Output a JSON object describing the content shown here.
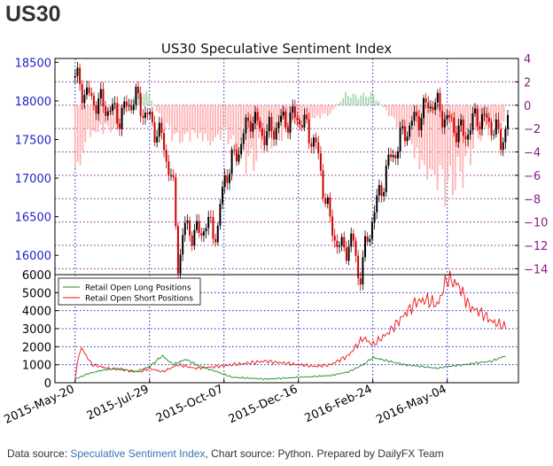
{
  "page": {
    "heading": "US30",
    "footer": {
      "prefix": "Data source: ",
      "link": "Speculative Sentiment Index",
      "suffix": ", Chart source: Python. Prepared by DailyFX Team"
    }
  },
  "colors": {
    "price_up": "#000000",
    "price_down": "#cc0000",
    "ssi_positive": "#a8d8b0",
    "ssi_negative": "#ffb3b3",
    "long_positions": "#1a8c1a",
    "short_positions": "#ee1111",
    "left_axis": "#1f1fcc",
    "right_axis": "#8b1a8b",
    "vertical_grid": "#1f1fcc",
    "horizontal_grid": "#8b1a8b"
  },
  "chart_data": [
    {
      "type": "line",
      "title": "US30 Speculative Sentiment Index",
      "subtype": "candlestick with sentiment bars",
      "x_ticks": [
        "2015-May-20",
        "2015-Jul-29",
        "2015-Oct-07",
        "2015-Dec-16",
        "2016-Feb-24",
        "2016-May-04"
      ],
      "xlim": [
        "2015-May-01",
        "2016-Jul-10"
      ],
      "left_axis": {
        "ticks": [
          16000,
          16500,
          17000,
          17500,
          18000,
          18500
        ],
        "ylim": [
          15750,
          18550
        ]
      },
      "right_axis": {
        "ticks": [
          4,
          2,
          0,
          -2,
          -4,
          -6,
          -8,
          -10,
          -12,
          -14
        ],
        "ylim": [
          -14.5,
          4
        ]
      },
      "grid": true,
      "series": [
        {
          "name": "",
          "kind": "price",
          "x": [
            "2015-May-20",
            "2015-Jun-01",
            "2015-Jun-15",
            "2015-Jul-01",
            "2015-Jul-15",
            "2015-Jul-29",
            "2015-Aug-10",
            "2015-Aug-20",
            "2015-Aug-25",
            "2015-Sep-01",
            "2015-Sep-10",
            "2015-Sep-20",
            "2015-Oct-01",
            "2015-Oct-07",
            "2015-Oct-20",
            "2015-Nov-01",
            "2015-Nov-15",
            "2015-Dec-01",
            "2015-Dec-16",
            "2016-Jan-01",
            "2016-Jan-15",
            "2016-Jan-25",
            "2016-Feb-05",
            "2016-Feb-11",
            "2016-Feb-24",
            "2016-Mar-10",
            "2016-Mar-25",
            "2016-Apr-10",
            "2016-Apr-20",
            "2016-May-04",
            "2016-May-20",
            "2016-Jun-01",
            "2016-Jun-15",
            "2016-Jun-24",
            "2016-Jul-01"
          ],
          "values": [
            18300,
            18050,
            17950,
            17800,
            18050,
            17750,
            17500,
            16900,
            15900,
            16400,
            16250,
            16400,
            16300,
            17000,
            17350,
            17800,
            17550,
            17750,
            17800,
            17450,
            16400,
            16050,
            16200,
            15700,
            16500,
            17200,
            17600,
            17850,
            18000,
            17750,
            17550,
            17800,
            17700,
            17450,
            17850
          ]
        },
        {
          "name": "",
          "kind": "ssi",
          "x": [
            "2015-May-20",
            "2015-Jun-01",
            "2015-Jun-15",
            "2015-Jul-01",
            "2015-Jul-15",
            "2015-Jul-29",
            "2015-Aug-10",
            "2015-Aug-25",
            "2015-Sep-10",
            "2015-Sep-25",
            "2015-Oct-07",
            "2015-Oct-20",
            "2015-Nov-01",
            "2015-Nov-15",
            "2015-Dec-01",
            "2015-Dec-16",
            "2016-Jan-01",
            "2016-Jan-15",
            "2016-Jan-29",
            "2016-Feb-10",
            "2016-Feb-24",
            "2016-Mar-10",
            "2016-Mar-25",
            "2016-Apr-10",
            "2016-Apr-25",
            "2016-May-04",
            "2016-May-20",
            "2016-Jun-01",
            "2016-Jun-15",
            "2016-Jun-28"
          ],
          "values": [
            -8.5,
            -3.5,
            -3.0,
            -2.5,
            1.5,
            1.2,
            -2.0,
            -4.0,
            -3.5,
            -4.5,
            -3.0,
            -5.0,
            -6.5,
            -4.0,
            -3.5,
            -2.0,
            -1.5,
            -1.0,
            1.2,
            1.0,
            1.2,
            -1.0,
            -3.5,
            -7.5,
            -8.5,
            -9.5,
            -7.0,
            -3.5,
            -2.5,
            -2.0
          ]
        }
      ]
    },
    {
      "type": "line",
      "x_ticks": [
        "2015-May-20",
        "2015-Jul-29",
        "2015-Oct-07",
        "2015-Dec-16",
        "2016-Feb-24",
        "2016-May-04"
      ],
      "y_ticks": [
        0,
        1000,
        2000,
        3000,
        4000,
        5000,
        6000
      ],
      "ylim": [
        0,
        6000
      ],
      "legend": "top-left",
      "grid": true,
      "series": [
        {
          "name": "Retail Open Long Positions",
          "x": [
            "2015-May-20",
            "2015-Jun-01",
            "2015-Jun-15",
            "2015-Jul-01",
            "2015-Jul-15",
            "2015-Jul-29",
            "2015-Aug-10",
            "2015-Aug-20",
            "2015-Sep-01",
            "2015-Sep-15",
            "2015-Oct-01",
            "2015-Oct-15",
            "2015-Nov-01",
            "2015-Nov-15",
            "2015-Dec-01",
            "2015-Dec-16",
            "2016-Jan-01",
            "2016-Jan-15",
            "2016-Feb-01",
            "2016-Feb-15",
            "2016-Feb-24",
            "2016-Mar-10",
            "2016-Mar-25",
            "2016-Apr-10",
            "2016-Apr-25",
            "2016-May-04",
            "2016-May-20",
            "2016-Jun-01",
            "2016-Jun-15",
            "2016-Jun-28"
          ],
          "values": [
            200,
            500,
            700,
            800,
            600,
            900,
            1500,
            1000,
            1300,
            900,
            600,
            300,
            250,
            200,
            250,
            300,
            350,
            400,
            600,
            1000,
            1400,
            1200,
            1000,
            900,
            800,
            900,
            1000,
            1100,
            1200,
            1500
          ]
        },
        {
          "name": "Retail Open Short Positions",
          "x": [
            "2015-May-20",
            "2015-May-25",
            "2015-Jun-05",
            "2015-Jun-20",
            "2015-Jul-05",
            "2015-Jul-20",
            "2015-Jul-29",
            "2015-Aug-10",
            "2015-Aug-25",
            "2015-Sep-10",
            "2015-Oct-01",
            "2015-Oct-15",
            "2015-Nov-01",
            "2015-Nov-15",
            "2015-Dec-01",
            "2015-Dec-16",
            "2016-Jan-01",
            "2016-Jan-15",
            "2016-Feb-01",
            "2016-Feb-15",
            "2016-Feb-24",
            "2016-Mar-10",
            "2016-Mar-25",
            "2016-Apr-05",
            "2016-Apr-15",
            "2016-Apr-25",
            "2016-May-04",
            "2016-May-15",
            "2016-May-25",
            "2016-Jun-05",
            "2016-Jun-15",
            "2016-Jun-28"
          ],
          "values": [
            300,
            2000,
            1000,
            800,
            700,
            600,
            800,
            600,
            1000,
            800,
            900,
            1000,
            1100,
            1200,
            1100,
            1000,
            900,
            1000,
            1500,
            2500,
            2100,
            2800,
            3800,
            4500,
            4600,
            4300,
            5800,
            5400,
            4200,
            3900,
            3400,
            3100
          ]
        }
      ]
    }
  ]
}
